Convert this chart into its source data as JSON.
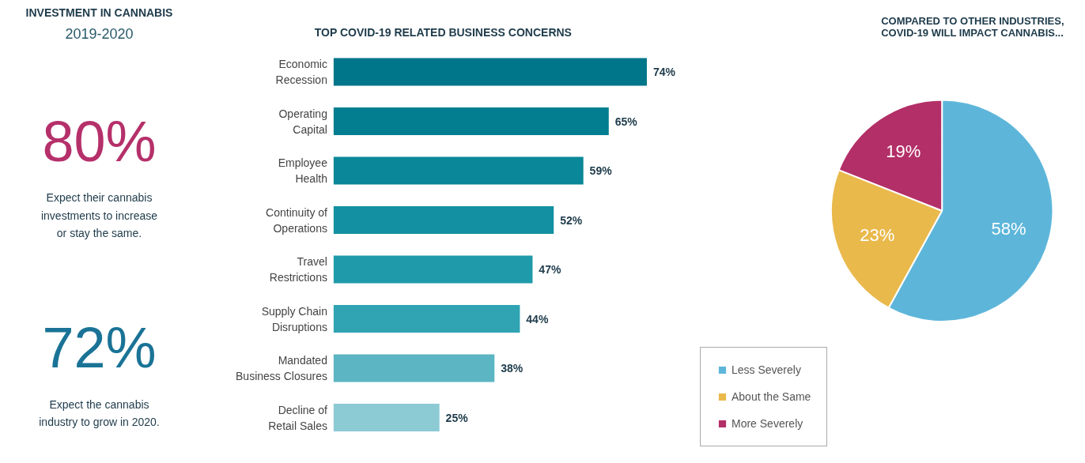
{
  "chart_data": [
    {
      "type": "other",
      "title": "INVESTMENT IN CANNABIS",
      "subtitle": "2019-2020",
      "annotations": [
        "80%",
        "Expect their cannabis\ninvestments to increase\nor stay the same.",
        "72%",
        "Expect the cannabis\nindustry to grow in 2020."
      ]
    },
    {
      "type": "bar",
      "orientation": "horizontal",
      "title": "TOP COVID-19 RELATED BUSINESS CONCERNS",
      "categories": [
        "Economic\nRecession",
        "Operating\nCapital",
        "Employee\nHealth",
        "Continuity of\nOperations",
        "Travel\nRestrictions",
        "Supply Chain\nDisruptions",
        "Mandated\nBusiness Closures",
        "Decline of\nRetail Sales"
      ],
      "values": [
        74,
        65,
        59,
        52,
        47,
        44,
        38,
        25
      ],
      "colors": [
        "#00768a",
        "#037e91",
        "#0a8798",
        "#1390a1",
        "#1f9aaa",
        "#30a4b3",
        "#5cb5c2",
        "#8ccad4"
      ],
      "value_labels": [
        "74%",
        "65%",
        "59%",
        "52%",
        "47%",
        "44%",
        "38%",
        "25%"
      ],
      "tick_labels": "y",
      "grid": false
    },
    {
      "type": "pie",
      "title": "COMPARED TO OTHER INDUSTRIES,\nCOVID-19 WILL IMPACT CANNABIS...",
      "categories": [
        "Less Severely",
        "About the Same",
        "More Severely"
      ],
      "values": [
        58,
        23,
        19
      ],
      "colors": [
        "#5db6da",
        "#e9b94c",
        "#b32f68"
      ],
      "value_labels": [
        "58%",
        "23%",
        "19%"
      ],
      "legend": "bottom left"
    }
  ]
}
